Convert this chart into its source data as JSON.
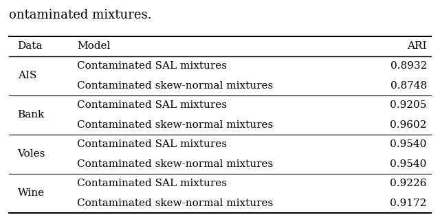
{
  "title_partial": "ontaminated mixtures.",
  "col_headers": [
    "Data",
    "Model",
    "ARI"
  ],
  "groups": [
    {
      "label": "AIS",
      "rows": [
        [
          "Contaminated SAL mixtures",
          "0.8932"
        ],
        [
          "Contaminated skew-normal mixtures",
          "0.8748"
        ]
      ]
    },
    {
      "label": "Bank",
      "rows": [
        [
          "Contaminated SAL mixtures",
          "0.9205"
        ],
        [
          "Contaminated skew-normal mixtures",
          "0.9602"
        ]
      ]
    },
    {
      "label": "Voles",
      "rows": [
        [
          "Contaminated SAL mixtures",
          "0.9540"
        ],
        [
          "Contaminated skew-normal mixtures",
          "0.9540"
        ]
      ]
    },
    {
      "label": "Wine",
      "rows": [
        [
          "Contaminated SAL mixtures",
          "0.9226"
        ],
        [
          "Contaminated skew-normal mixtures",
          "0.9172"
        ]
      ]
    }
  ],
  "bg_color": "#ffffff",
  "text_color": "#000000",
  "font_size": 11,
  "title_font_size": 13
}
